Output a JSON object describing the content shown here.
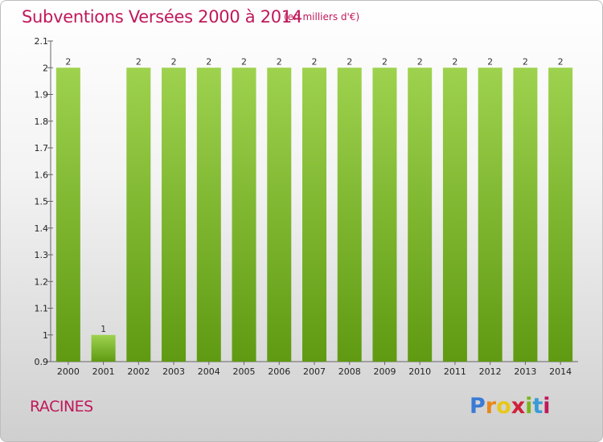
{
  "header": {
    "title": "Subventions Versées 2000 à 2014",
    "subtitle": "(en milliers d'€)"
  },
  "commune": "RACINES",
  "logo": {
    "letters": [
      "P",
      "r",
      "o",
      "x",
      "i",
      "t",
      "i"
    ],
    "colors": [
      "#3a7bd5",
      "#e8881a",
      "#e8c81a",
      "#d0203a",
      "#7ab51d",
      "#3a9bd5",
      "#c0185b"
    ]
  },
  "colors": {
    "bar_top": "#9ed24e",
    "bar_bottom": "#5f9a12",
    "text_accent": "#c0185b"
  },
  "chart_data": {
    "type": "bar",
    "title": "Subventions Versées 2000 à 2014",
    "subtitle": "(en milliers d'€)",
    "categories": [
      "2000",
      "2001",
      "2002",
      "2003",
      "2004",
      "2005",
      "2006",
      "2007",
      "2008",
      "2009",
      "2010",
      "2011",
      "2012",
      "2013",
      "2014"
    ],
    "values": [
      2,
      1,
      2,
      2,
      2,
      2,
      2,
      2,
      2,
      2,
      2,
      2,
      2,
      2,
      2
    ],
    "value_labels": [
      "2",
      "1",
      "2",
      "2",
      "2",
      "2",
      "2",
      "2",
      "2",
      "2",
      "2",
      "2",
      "2",
      "2",
      "2"
    ],
    "ylim": [
      0.9,
      2.1
    ],
    "yticks": [
      0.9,
      1,
      1.1,
      1.2,
      1.3,
      1.4,
      1.5,
      1.6,
      1.7,
      1.8,
      1.9,
      2,
      2.1
    ],
    "ytick_labels": [
      "0.9",
      "1",
      "1.1",
      "1.2",
      "1.3",
      "1.4",
      "1.5",
      "1.6",
      "1.7",
      "1.8",
      "1.9",
      "2",
      "2.1"
    ],
    "xlabel": "",
    "ylabel": "",
    "grid": false,
    "legend": "none"
  }
}
